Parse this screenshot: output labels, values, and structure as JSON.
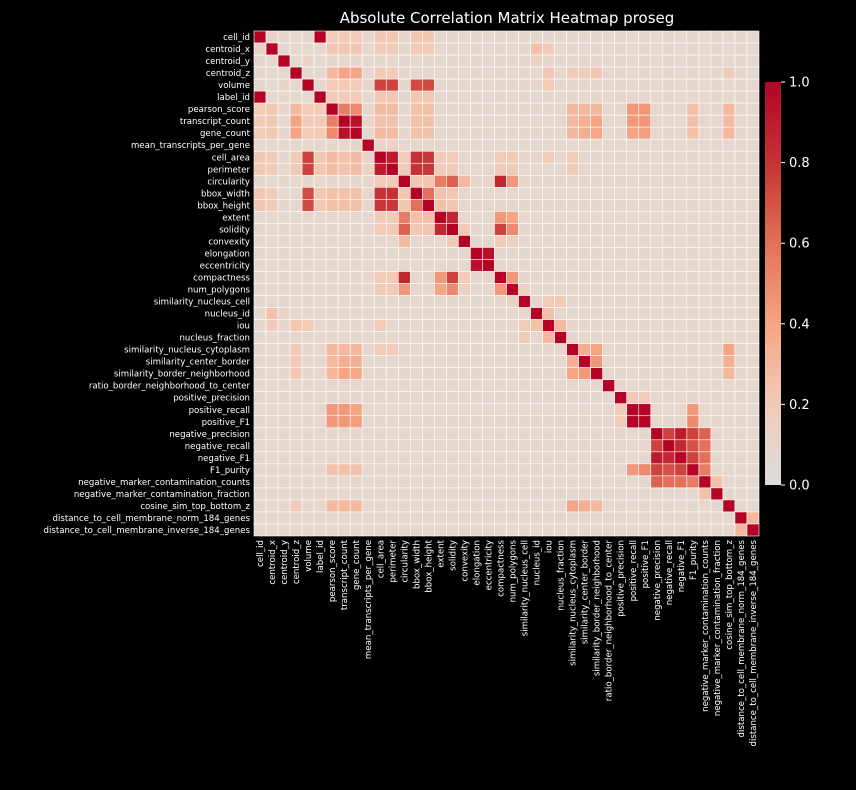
{
  "chart_data": {
    "type": "heatmap",
    "title": "Absolute Correlation Matrix Heatmap proseg",
    "variables": [
      "cell_id",
      "centroid_x",
      "centroid_y",
      "centroid_z",
      "volume",
      "label_id",
      "pearson_score",
      "transcript_count",
      "gene_count",
      "mean_transcripts_per_gene",
      "cell_area",
      "perimeter",
      "circularity",
      "bbox_width",
      "bbox_height",
      "extent",
      "solidity",
      "convexity",
      "elongation",
      "eccentricity",
      "compactness",
      "num_polygons",
      "similarity_nucleus_cell",
      "nucleus_id",
      "iou",
      "nucleus_fraction",
      "similarity_nucleus_cytoplasm",
      "similarity_center_border",
      "similarity_border_neighborhood",
      "ratio_border_neighborhood_to_center",
      "positive_precision",
      "positive_recall",
      "positive_F1",
      "negative_precision",
      "negative_recall",
      "negative_F1",
      "F1_purity",
      "negative_marker_contamination_counts",
      "negative_marker_contamination_fraction",
      "cosine_sim_top_bottom_z",
      "distance_to_cell_membrane_norm_184_genes",
      "distance_to_cell_membrane_inverse_184_genes"
    ],
    "color_scale": {
      "name": "coolwarm (upper half)",
      "min": 0.0,
      "max": 1.0,
      "stops": [
        "#dddddd",
        "#f1cbb7",
        "#f5a484",
        "#e3705a",
        "#c53234",
        "#b40426"
      ]
    },
    "colorbar_ticks": [
      "0.0",
      "0.2",
      "0.4",
      "0.6",
      "0.8",
      "1.0"
    ],
    "default_value": 0.08,
    "pairs": [
      [
        0,
        5,
        1.0
      ],
      [
        0,
        1,
        0.12
      ],
      [
        0,
        6,
        0.2
      ],
      [
        0,
        7,
        0.2
      ],
      [
        0,
        8,
        0.2
      ],
      [
        0,
        10,
        0.22
      ],
      [
        0,
        11,
        0.22
      ],
      [
        0,
        13,
        0.22
      ],
      [
        0,
        14,
        0.22
      ],
      [
        1,
        6,
        0.22
      ],
      [
        1,
        7,
        0.22
      ],
      [
        1,
        8,
        0.22
      ],
      [
        1,
        10,
        0.2
      ],
      [
        1,
        11,
        0.2
      ],
      [
        1,
        13,
        0.2
      ],
      [
        1,
        14,
        0.2
      ],
      [
        1,
        23,
        0.25
      ],
      [
        1,
        24,
        0.2
      ],
      [
        2,
        4,
        0.12
      ],
      [
        2,
        23,
        0.12
      ],
      [
        3,
        6,
        0.3
      ],
      [
        3,
        7,
        0.4
      ],
      [
        3,
        8,
        0.4
      ],
      [
        3,
        10,
        0.2
      ],
      [
        3,
        11,
        0.2
      ],
      [
        3,
        24,
        0.22
      ],
      [
        3,
        26,
        0.2
      ],
      [
        3,
        27,
        0.2
      ],
      [
        3,
        28,
        0.22
      ],
      [
        3,
        39,
        0.2
      ],
      [
        4,
        10,
        0.75
      ],
      [
        4,
        11,
        0.75
      ],
      [
        4,
        13,
        0.72
      ],
      [
        4,
        14,
        0.72
      ],
      [
        4,
        6,
        0.2
      ],
      [
        4,
        7,
        0.2
      ],
      [
        4,
        8,
        0.2
      ],
      [
        4,
        24,
        0.2
      ],
      [
        5,
        6,
        0.2
      ],
      [
        5,
        7,
        0.2
      ],
      [
        5,
        8,
        0.2
      ],
      [
        5,
        10,
        0.22
      ],
      [
        5,
        11,
        0.22
      ],
      [
        5,
        13,
        0.22
      ],
      [
        5,
        14,
        0.22
      ],
      [
        6,
        7,
        0.55
      ],
      [
        6,
        8,
        0.5
      ],
      [
        6,
        10,
        0.28
      ],
      [
        6,
        11,
        0.28
      ],
      [
        6,
        13,
        0.25
      ],
      [
        6,
        14,
        0.25
      ],
      [
        6,
        26,
        0.3
      ],
      [
        6,
        27,
        0.3
      ],
      [
        6,
        28,
        0.3
      ],
      [
        6,
        31,
        0.45
      ],
      [
        6,
        32,
        0.45
      ],
      [
        6,
        36,
        0.25
      ],
      [
        6,
        39,
        0.3
      ],
      [
        7,
        8,
        0.95
      ],
      [
        7,
        10,
        0.25
      ],
      [
        7,
        11,
        0.25
      ],
      [
        7,
        13,
        0.25
      ],
      [
        7,
        14,
        0.25
      ],
      [
        7,
        26,
        0.3
      ],
      [
        7,
        27,
        0.35
      ],
      [
        7,
        28,
        0.4
      ],
      [
        7,
        31,
        0.45
      ],
      [
        7,
        32,
        0.45
      ],
      [
        7,
        36,
        0.25
      ],
      [
        7,
        39,
        0.3
      ],
      [
        8,
        10,
        0.28
      ],
      [
        8,
        11,
        0.28
      ],
      [
        8,
        13,
        0.25
      ],
      [
        8,
        14,
        0.25
      ],
      [
        8,
        26,
        0.3
      ],
      [
        8,
        27,
        0.35
      ],
      [
        8,
        28,
        0.38
      ],
      [
        8,
        31,
        0.4
      ],
      [
        8,
        32,
        0.42
      ],
      [
        8,
        36,
        0.25
      ],
      [
        8,
        39,
        0.3
      ],
      [
        9,
        10,
        0.12
      ],
      [
        9,
        11,
        0.12
      ],
      [
        10,
        11,
        0.9
      ],
      [
        10,
        13,
        0.8
      ],
      [
        10,
        14,
        0.78
      ],
      [
        10,
        12,
        0.2
      ],
      [
        10,
        15,
        0.2
      ],
      [
        10,
        16,
        0.2
      ],
      [
        10,
        20,
        0.2
      ],
      [
        10,
        21,
        0.2
      ],
      [
        10,
        24,
        0.2
      ],
      [
        10,
        26,
        0.2
      ],
      [
        11,
        13,
        0.8
      ],
      [
        11,
        14,
        0.78
      ],
      [
        11,
        12,
        0.2
      ],
      [
        11,
        15,
        0.2
      ],
      [
        11,
        16,
        0.2
      ],
      [
        11,
        20,
        0.2
      ],
      [
        11,
        21,
        0.2
      ],
      [
        11,
        26,
        0.2
      ],
      [
        12,
        15,
        0.55
      ],
      [
        12,
        16,
        0.65
      ],
      [
        12,
        17,
        0.3
      ],
      [
        12,
        20,
        0.85
      ],
      [
        12,
        21,
        0.45
      ],
      [
        12,
        13,
        0.22
      ],
      [
        12,
        14,
        0.22
      ],
      [
        13,
        14,
        0.6
      ],
      [
        13,
        15,
        0.25
      ],
      [
        13,
        16,
        0.22
      ],
      [
        14,
        15,
        0.25
      ],
      [
        14,
        16,
        0.22
      ],
      [
        15,
        16,
        0.85
      ],
      [
        15,
        20,
        0.45
      ],
      [
        15,
        21,
        0.4
      ],
      [
        16,
        20,
        0.75
      ],
      [
        16,
        21,
        0.5
      ],
      [
        16,
        17,
        0.2
      ],
      [
        17,
        20,
        0.2
      ],
      [
        17,
        21,
        0.15
      ],
      [
        18,
        19,
        0.95
      ],
      [
        20,
        21,
        0.45
      ],
      [
        21,
        22,
        0.15
      ],
      [
        22,
        24,
        0.2
      ],
      [
        22,
        25,
        0.2
      ],
      [
        23,
        24,
        0.25
      ],
      [
        24,
        25,
        0.3
      ],
      [
        26,
        27,
        0.35
      ],
      [
        26,
        28,
        0.4
      ],
      [
        26,
        39,
        0.4
      ],
      [
        27,
        28,
        0.45
      ],
      [
        27,
        39,
        0.35
      ],
      [
        28,
        39,
        0.3
      ],
      [
        30,
        31,
        0.2
      ],
      [
        30,
        32,
        0.2
      ],
      [
        31,
        32,
        1.0
      ],
      [
        31,
        36,
        0.45
      ],
      [
        32,
        36,
        0.5
      ],
      [
        33,
        34,
        0.75
      ],
      [
        33,
        35,
        0.9
      ],
      [
        33,
        36,
        0.75
      ],
      [
        33,
        37,
        0.65
      ],
      [
        34,
        35,
        0.85
      ],
      [
        34,
        36,
        0.7
      ],
      [
        34,
        37,
        0.6
      ],
      [
        35,
        36,
        0.75
      ],
      [
        35,
        37,
        0.6
      ],
      [
        36,
        37,
        0.55
      ],
      [
        37,
        38,
        0.25
      ],
      [
        40,
        41,
        0.3
      ]
    ]
  }
}
